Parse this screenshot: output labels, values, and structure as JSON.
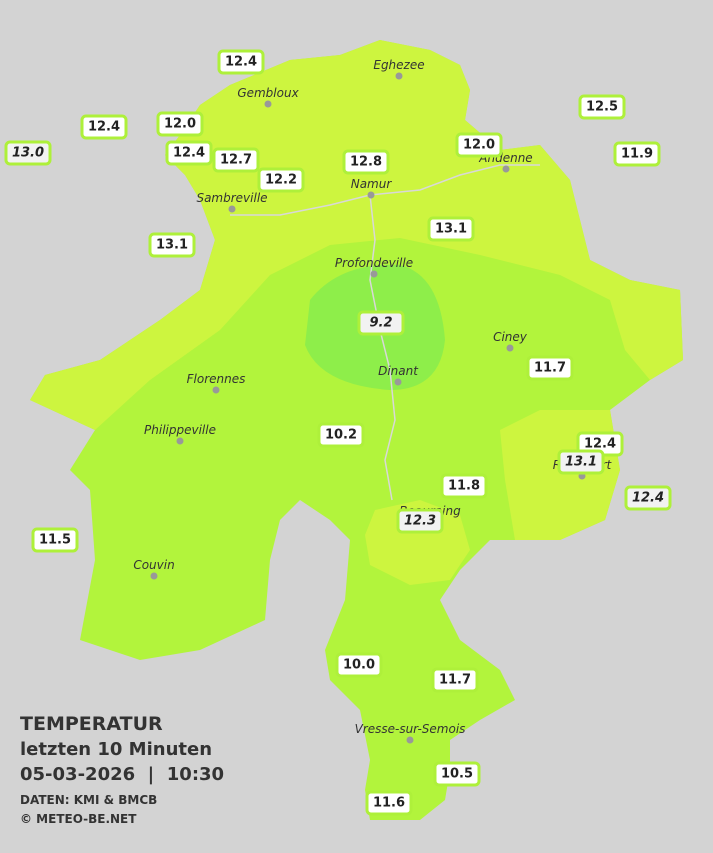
{
  "header": {
    "title": "TEMPERATUR",
    "subtitle": "letzten 10 Minuten",
    "datetime": "05-03-2026  |  10:30",
    "source": "DATEN: KMI & BMCB",
    "copyright": "© METEO-BE.NET"
  },
  "cities": [
    "Eghezee",
    "Gembloux",
    "Andenne",
    "Namur",
    "Sambreville",
    "Profondeville",
    "Ciney",
    "Dinant",
    "Florennes",
    "Philippeville",
    "Rochefort",
    "Beauraing",
    "Couvin",
    "Vresse-sur-Semois"
  ],
  "stations": [
    {
      "label": "12.4"
    },
    {
      "label": "12.4"
    },
    {
      "label": "12.0"
    },
    {
      "label": "13.0",
      "italic": true
    },
    {
      "label": "12.4"
    },
    {
      "label": "12.7"
    },
    {
      "label": "12.2"
    },
    {
      "label": "12.8"
    },
    {
      "label": "12.0"
    },
    {
      "label": "12.5"
    },
    {
      "label": "11.9"
    },
    {
      "label": "13.1"
    },
    {
      "label": "13.1"
    },
    {
      "label": "9.2",
      "italic": true
    },
    {
      "label": "11.7"
    },
    {
      "label": "10.2"
    },
    {
      "label": "12.4"
    },
    {
      "label": "13.1",
      "italic": true
    },
    {
      "label": "11.8"
    },
    {
      "label": "12.4",
      "italic": true
    },
    {
      "label": "12.3",
      "italic": true
    },
    {
      "label": "11.5"
    },
    {
      "label": "10.0"
    },
    {
      "label": "11.7"
    },
    {
      "label": "10.5"
    },
    {
      "label": "11.6"
    }
  ]
}
